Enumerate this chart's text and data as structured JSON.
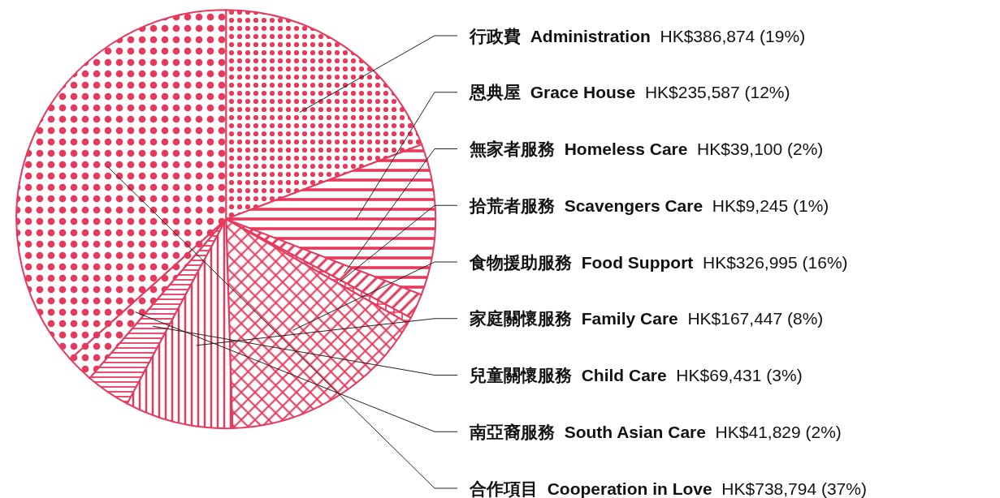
{
  "chart_data": {
    "type": "pie",
    "categories": [
      "行政費  Administration",
      "恩典屋  Grace House",
      "無家者服務  Homeless Care",
      "拾荒者服務  Scavengers Care",
      "食物援助服務  Food Support",
      "家庭關懷服務  Family Care",
      "兒童關懷服務  Child Care",
      "南亞裔服務  South Asian Care",
      "合作項目  Cooperation in Love"
    ],
    "values": [
      386874,
      235587,
      39100,
      9245,
      326995,
      167447,
      69431,
      41829,
      738794
    ],
    "value_labels": [
      "HK$386,874 (19%)",
      "HK$235,587 (12%)",
      "HK$39,100 (2%)",
      "HK$9,245 (1%)",
      "HK$326,995 (16%)",
      "HK$167,447 (8%)",
      "HK$69,431 (3%)",
      "HK$41,829 (2%)",
      "HK$738,794 (37%)"
    ],
    "colors": [
      "#e8385c",
      "#e8385c",
      "#e8385c",
      "#e8385c",
      "#e8385c",
      "#e8385c",
      "#e8385c",
      "#e8385c",
      "#e8385c"
    ]
  }
}
